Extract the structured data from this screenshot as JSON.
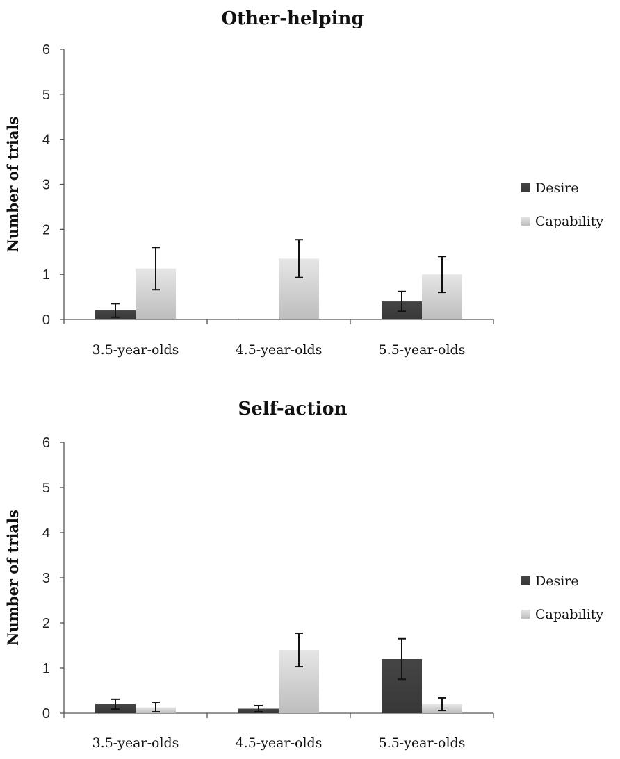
{
  "chart_data": [
    {
      "type": "bar",
      "title": "Other-helping",
      "xlabel": "",
      "ylabel": "Number of trials",
      "ylim": [
        0,
        6
      ],
      "yticks": [
        0,
        1,
        2,
        3,
        4,
        5,
        6
      ],
      "categories": [
        "3.5-year-olds",
        "4.5-year-olds",
        "5.5-year-olds"
      ],
      "series": [
        {
          "name": "Desire",
          "color": "#3f3f3f",
          "values": [
            0.2,
            0.0,
            0.4
          ],
          "errors": [
            0.15,
            0.0,
            0.22
          ]
        },
        {
          "name": "Capability",
          "color": "#d3d3d3",
          "values": [
            1.13,
            1.35,
            1.0
          ],
          "errors": [
            0.47,
            0.42,
            0.4
          ]
        }
      ],
      "legend": "right"
    },
    {
      "type": "bar",
      "title": "Self-action",
      "xlabel": "",
      "ylabel": "Number of trials",
      "ylim": [
        0,
        6
      ],
      "yticks": [
        0,
        1,
        2,
        3,
        4,
        5,
        6
      ],
      "categories": [
        "3.5-year-olds",
        "4.5-year-olds",
        "5.5-year-olds"
      ],
      "series": [
        {
          "name": "Desire",
          "color": "#3f3f3f",
          "values": [
            0.2,
            0.1,
            1.2
          ],
          "errors": [
            0.11,
            0.07,
            0.45
          ]
        },
        {
          "name": "Capability",
          "color": "#d3d3d3",
          "values": [
            0.13,
            1.4,
            0.2
          ],
          "errors": [
            0.1,
            0.37,
            0.14
          ]
        }
      ],
      "legend": "right"
    }
  ]
}
